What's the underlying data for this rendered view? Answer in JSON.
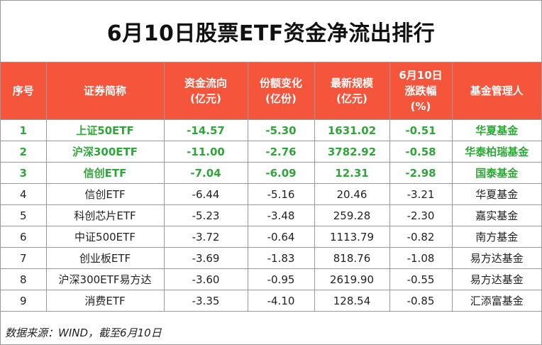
{
  "title": "6月10日股票ETF资金净流出排行",
  "headers": {
    "rank": "序号",
    "name": "证券简称",
    "flow": [
      "资金流向",
      "(亿元)"
    ],
    "share": [
      "份额变化",
      "(亿份)"
    ],
    "size": [
      "最新规模",
      "(亿元)"
    ],
    "change": [
      "6月10日",
      "涨跌幅",
      "(%)"
    ],
    "manager": "基金管理人"
  },
  "rows": [
    {
      "rank": "1",
      "name": "上证50ETF",
      "flow": "-14.57",
      "share": "-5.30",
      "size": "1631.02",
      "change": "-0.51",
      "manager": "华夏基金",
      "highlight": true
    },
    {
      "rank": "2",
      "name": "沪深300ETF",
      "flow": "-11.00",
      "share": "-2.76",
      "size": "3782.92",
      "change": "-0.58",
      "manager": "华泰柏瑞基金",
      "highlight": true
    },
    {
      "rank": "3",
      "name": "信创ETF",
      "flow": "-7.04",
      "share": "-6.09",
      "size": "12.31",
      "change": "-2.98",
      "manager": "国泰基金",
      "highlight": true
    },
    {
      "rank": "4",
      "name": "信创ETF",
      "flow": "-6.44",
      "share": "-5.16",
      "size": "20.46",
      "change": "-3.21",
      "manager": "华夏基金",
      "highlight": false
    },
    {
      "rank": "5",
      "name": "科创芯片ETF",
      "flow": "-5.23",
      "share": "-3.48",
      "size": "259.28",
      "change": "-2.30",
      "manager": "嘉实基金",
      "highlight": false
    },
    {
      "rank": "6",
      "name": "中证500ETF",
      "flow": "-3.72",
      "share": "-0.64",
      "size": "1113.79",
      "change": "-0.82",
      "manager": "南方基金",
      "highlight": false
    },
    {
      "rank": "7",
      "name": "创业板ETF",
      "flow": "-3.69",
      "share": "-1.83",
      "size": "818.76",
      "change": "-1.08",
      "manager": "易方达基金",
      "highlight": false
    },
    {
      "rank": "8",
      "name": "沪深300ETF易方达",
      "flow": "-3.60",
      "share": "-0.95",
      "size": "2619.90",
      "change": "-0.55",
      "manager": "易方达基金",
      "highlight": false
    },
    {
      "rank": "9",
      "name": "消费ETF",
      "flow": "-3.35",
      "share": "-4.10",
      "size": "128.54",
      "change": "-0.85",
      "manager": "汇添富基金",
      "highlight": false
    }
  ],
  "colors": {
    "header_bg": "#f4553b",
    "highlight_text": "#2fa53a"
  },
  "source": "数据来源：WIND，截至6月10日"
}
